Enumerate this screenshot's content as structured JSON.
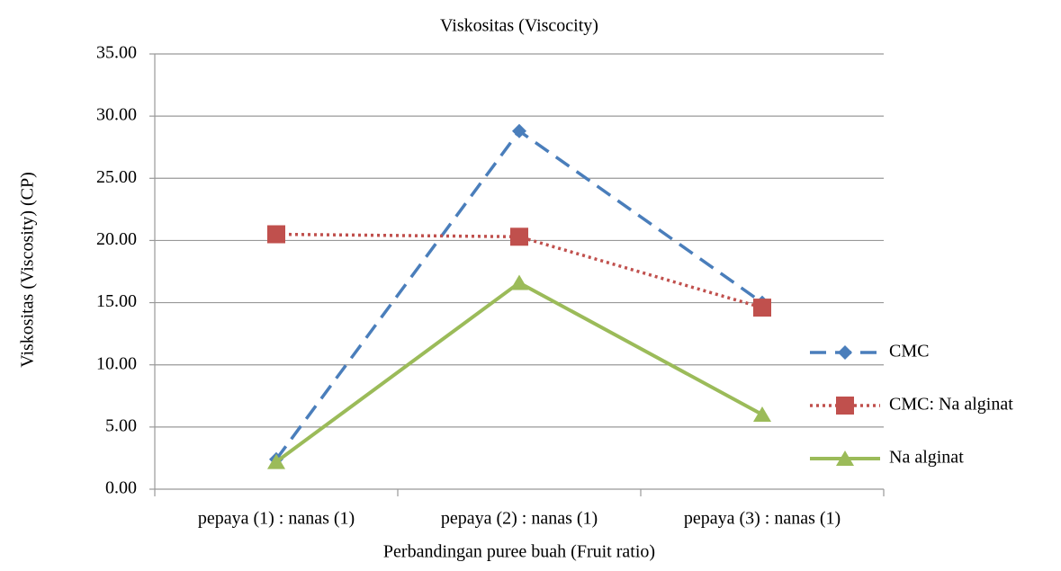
{
  "chart_data": {
    "type": "line",
    "title": "Viskositas (Viscocity)",
    "x_label": "Perbandingan puree buah (Fruit ratio)",
    "y_label": "Viskositas (Viscosity) (CP)",
    "categories": [
      "pepaya (1) : nanas (1)",
      "pepaya (2) : nanas (1)",
      "pepaya (3) : nanas (1)"
    ],
    "series": [
      {
        "name": "CMC",
        "color": "#4a7ebb",
        "line_style": "dashed",
        "marker": "diamond",
        "values": [
          2.4,
          28.8,
          15.0
        ]
      },
      {
        "name": "CMC: Na alginat",
        "color": "#c0504d",
        "line_style": "dotted",
        "marker": "square",
        "values": [
          20.5,
          20.3,
          14.6
        ]
      },
      {
        "name": "Na alginat",
        "color": "#9bbb59",
        "line_style": "solid",
        "marker": "triangle",
        "values": [
          2.2,
          16.6,
          6.0
        ]
      }
    ],
    "ylim": [
      0,
      35
    ],
    "yticks": [
      {
        "value": 0,
        "label": "0.00"
      },
      {
        "value": 5,
        "label": "5.00"
      },
      {
        "value": 10,
        "label": "10.00"
      },
      {
        "value": 15,
        "label": "15.00"
      },
      {
        "value": 20,
        "label": "20.00"
      },
      {
        "value": 25,
        "label": "25.00"
      },
      {
        "value": 30,
        "label": "30.00"
      },
      {
        "value": 35,
        "label": "35.00"
      }
    ],
    "grid": true,
    "legend": "right"
  }
}
